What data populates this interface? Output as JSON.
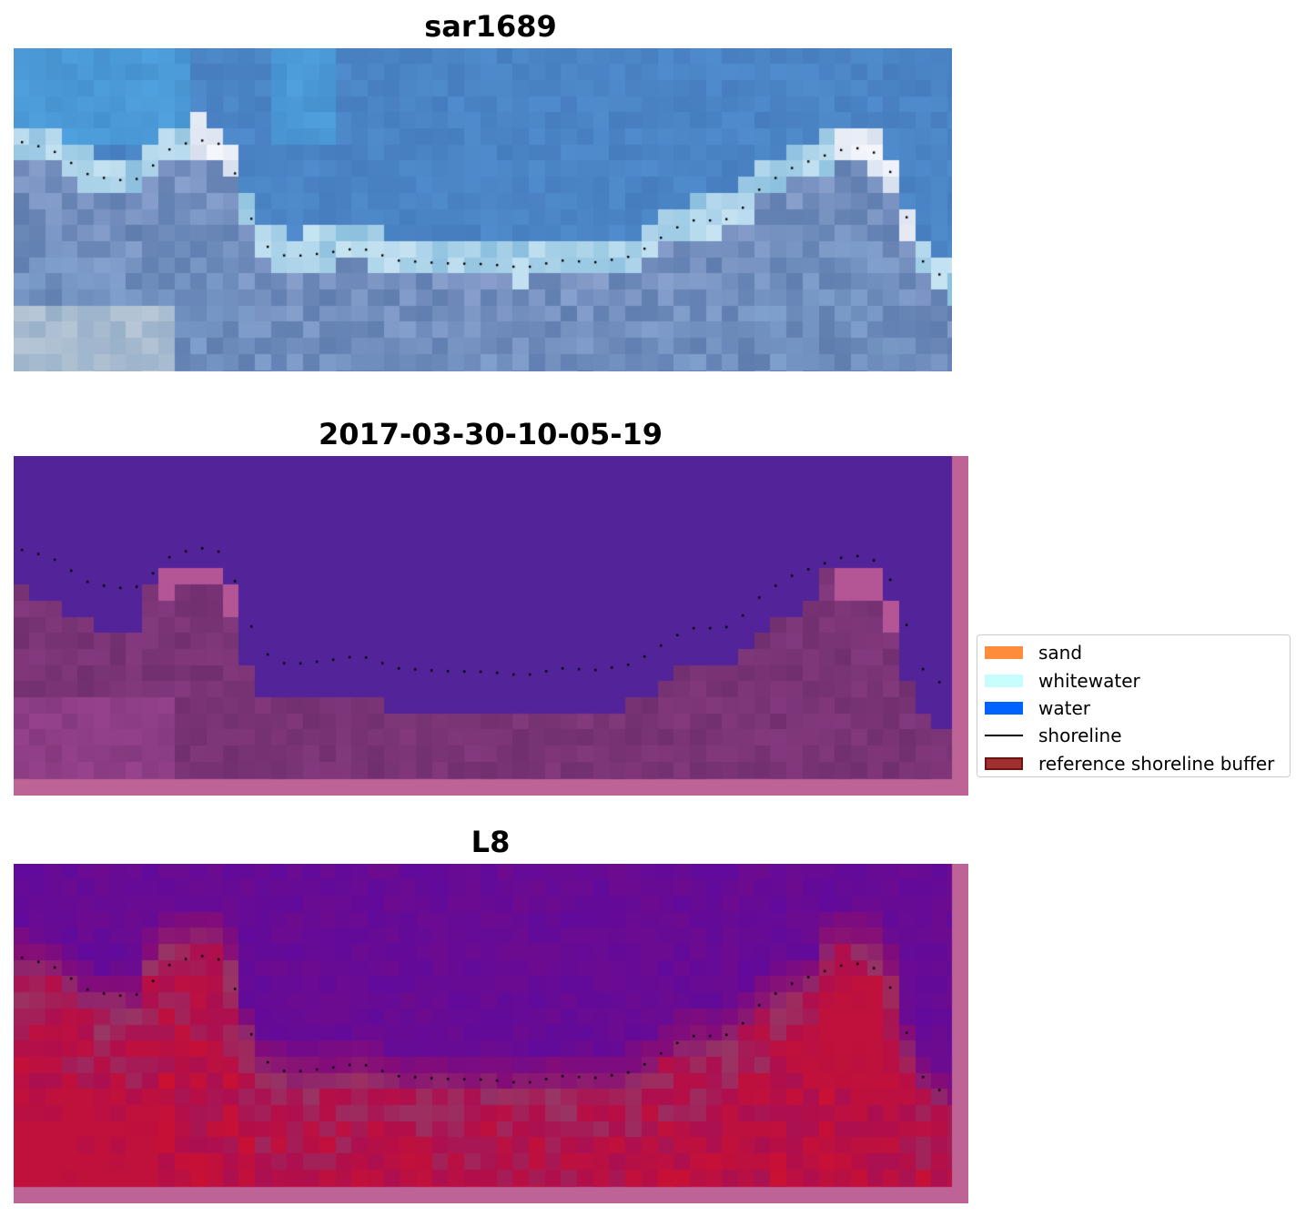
{
  "panels": [
    {
      "title": "sar1689",
      "style": "rgb"
    },
    {
      "title": "2017-03-30-10-05-19",
      "style": "classified"
    },
    {
      "title": "L8",
      "style": "ndwi"
    }
  ],
  "legend": {
    "items": [
      {
        "label": "sand",
        "color": "#ff8c3a",
        "kind": "patch"
      },
      {
        "label": "whitewater",
        "color": "#c8fdfd",
        "kind": "patch"
      },
      {
        "label": "water",
        "color": "#0062ff",
        "kind": "patch"
      },
      {
        "label": "shoreline",
        "color": "#000000",
        "kind": "line"
      },
      {
        "label": "reference shoreline buffer",
        "color": "#a03030",
        "edge": "#6e1414",
        "kind": "patch"
      }
    ]
  },
  "colors": {
    "water_class": "#532399",
    "land_class": "#7a3476",
    "buffer_edge": "#bd6396",
    "sea_blue": "#4a78c0",
    "water_index_high": "#5c0aa0",
    "water_index_low": "#c0103c"
  }
}
